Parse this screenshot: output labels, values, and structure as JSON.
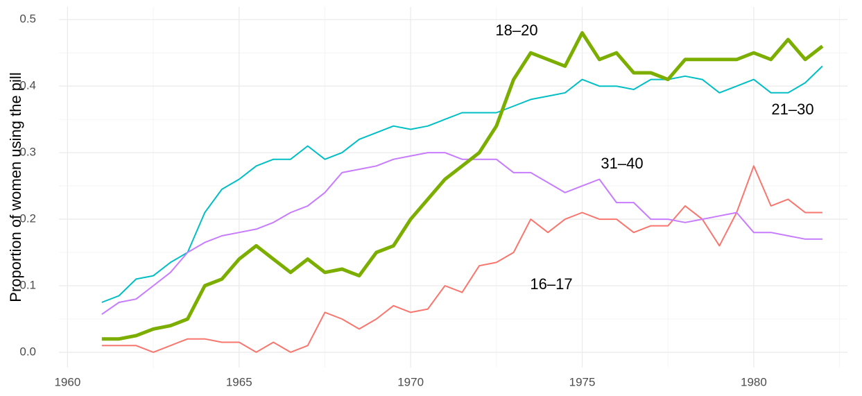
{
  "chart_data": {
    "type": "line",
    "y_label": "Proportion of women using the pill",
    "x": [
      1961,
      1961.5,
      1962,
      1962.5,
      1963,
      1963.5,
      1964,
      1964.5,
      1965,
      1965.5,
      1966,
      1966.5,
      1967,
      1967.5,
      1968,
      1968.5,
      1969,
      1969.5,
      1970,
      1970.5,
      1971,
      1971.5,
      1972,
      1972.5,
      1973,
      1973.5,
      1974,
      1974.5,
      1975,
      1975.5,
      1976,
      1976.5,
      1977,
      1977.5,
      1978,
      1978.5,
      1979,
      1979.5,
      1980,
      1980.5,
      1981,
      1981.5,
      1982
    ],
    "series": [
      {
        "name": "16–17",
        "color": "#F8766D",
        "values": [
          0.01,
          0.01,
          0.01,
          0.0,
          0.01,
          0.02,
          0.02,
          0.015,
          0.015,
          0.0,
          0.015,
          0.0,
          0.01,
          0.06,
          0.05,
          0.035,
          0.05,
          0.07,
          0.06,
          0.065,
          0.1,
          0.09,
          0.13,
          0.135,
          0.15,
          0.2,
          0.18,
          0.2,
          0.21,
          0.2,
          0.2,
          0.18,
          0.19,
          0.19,
          0.22,
          0.2,
          0.16,
          0.21,
          0.28,
          0.22,
          0.23,
          0.21,
          0.21
        ]
      },
      {
        "name": "18–20",
        "color": "#7CAE00",
        "values": [
          0.02,
          0.02,
          0.025,
          0.035,
          0.04,
          0.05,
          0.1,
          0.11,
          0.14,
          0.16,
          0.14,
          0.12,
          0.14,
          0.12,
          0.125,
          0.115,
          0.15,
          0.16,
          0.2,
          0.23,
          0.26,
          0.28,
          0.3,
          0.34,
          0.41,
          0.45,
          0.44,
          0.43,
          0.48,
          0.44,
          0.45,
          0.42,
          0.42,
          0.41,
          0.44,
          0.44,
          0.44,
          0.44,
          0.45,
          0.44,
          0.47,
          0.44,
          0.46
        ]
      },
      {
        "name": "21–30",
        "color": "#00BFC4",
        "values": [
          0.075,
          0.085,
          0.11,
          0.115,
          0.135,
          0.15,
          0.21,
          0.245,
          0.26,
          0.28,
          0.29,
          0.29,
          0.31,
          0.29,
          0.3,
          0.32,
          0.33,
          0.34,
          0.335,
          0.34,
          0.35,
          0.36,
          0.36,
          0.36,
          0.37,
          0.38,
          0.385,
          0.39,
          0.41,
          0.4,
          0.4,
          0.395,
          0.41,
          0.41,
          0.415,
          0.41,
          0.39,
          0.4,
          0.41,
          0.39,
          0.39,
          0.405,
          0.43
        ]
      },
      {
        "name": "31–40",
        "color": "#C77CFF",
        "values": [
          0.057,
          0.075,
          0.08,
          0.1,
          0.12,
          0.15,
          0.165,
          0.175,
          0.18,
          0.185,
          0.195,
          0.21,
          0.22,
          0.24,
          0.27,
          0.275,
          0.28,
          0.29,
          0.295,
          0.3,
          0.3,
          0.29,
          0.29,
          0.29,
          0.27,
          0.27,
          0.255,
          0.24,
          0.25,
          0.26,
          0.225,
          0.225,
          0.2,
          0.2,
          0.195,
          0.2,
          0.205,
          0.21,
          0.18,
          0.18,
          0.175,
          0.17,
          0.17
        ]
      }
    ],
    "xlim": [
      1959.75,
      1982.73
    ],
    "ylim": [
      -0.023,
      0.519
    ],
    "xticks": [
      1960,
      1965,
      1970,
      1975,
      1980
    ],
    "yticks": [
      {
        "value": 0,
        "label": "0.0"
      },
      0.1,
      0.2,
      0.3,
      0.4,
      0.5
    ],
    "grid": true
  }
}
